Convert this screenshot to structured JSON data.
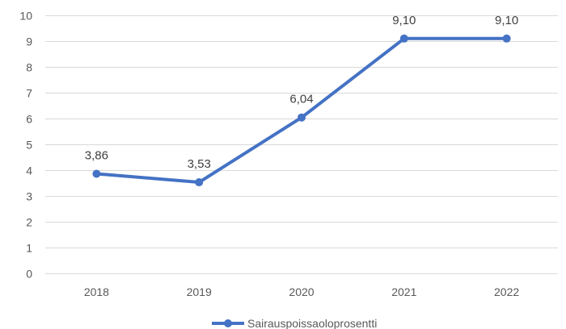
{
  "chart_data": {
    "type": "line",
    "categories": [
      "2018",
      "2019",
      "2020",
      "2021",
      "2022"
    ],
    "series": [
      {
        "name": "Sairauspoissaoloprosentti",
        "values": [
          3.86,
          3.53,
          6.04,
          9.1,
          9.1
        ],
        "labels": [
          "3,86",
          "3,53",
          "6,04",
          "9,10",
          "9,10"
        ],
        "color": "#4472c4"
      }
    ],
    "y_ticks": [
      "0",
      "1",
      "2",
      "3",
      "4",
      "5",
      "6",
      "7",
      "8",
      "9",
      "10"
    ],
    "ylim": [
      0,
      10
    ],
    "grid": true,
    "legend_position": "bottom",
    "title": "",
    "xlabel": "",
    "ylabel": ""
  }
}
